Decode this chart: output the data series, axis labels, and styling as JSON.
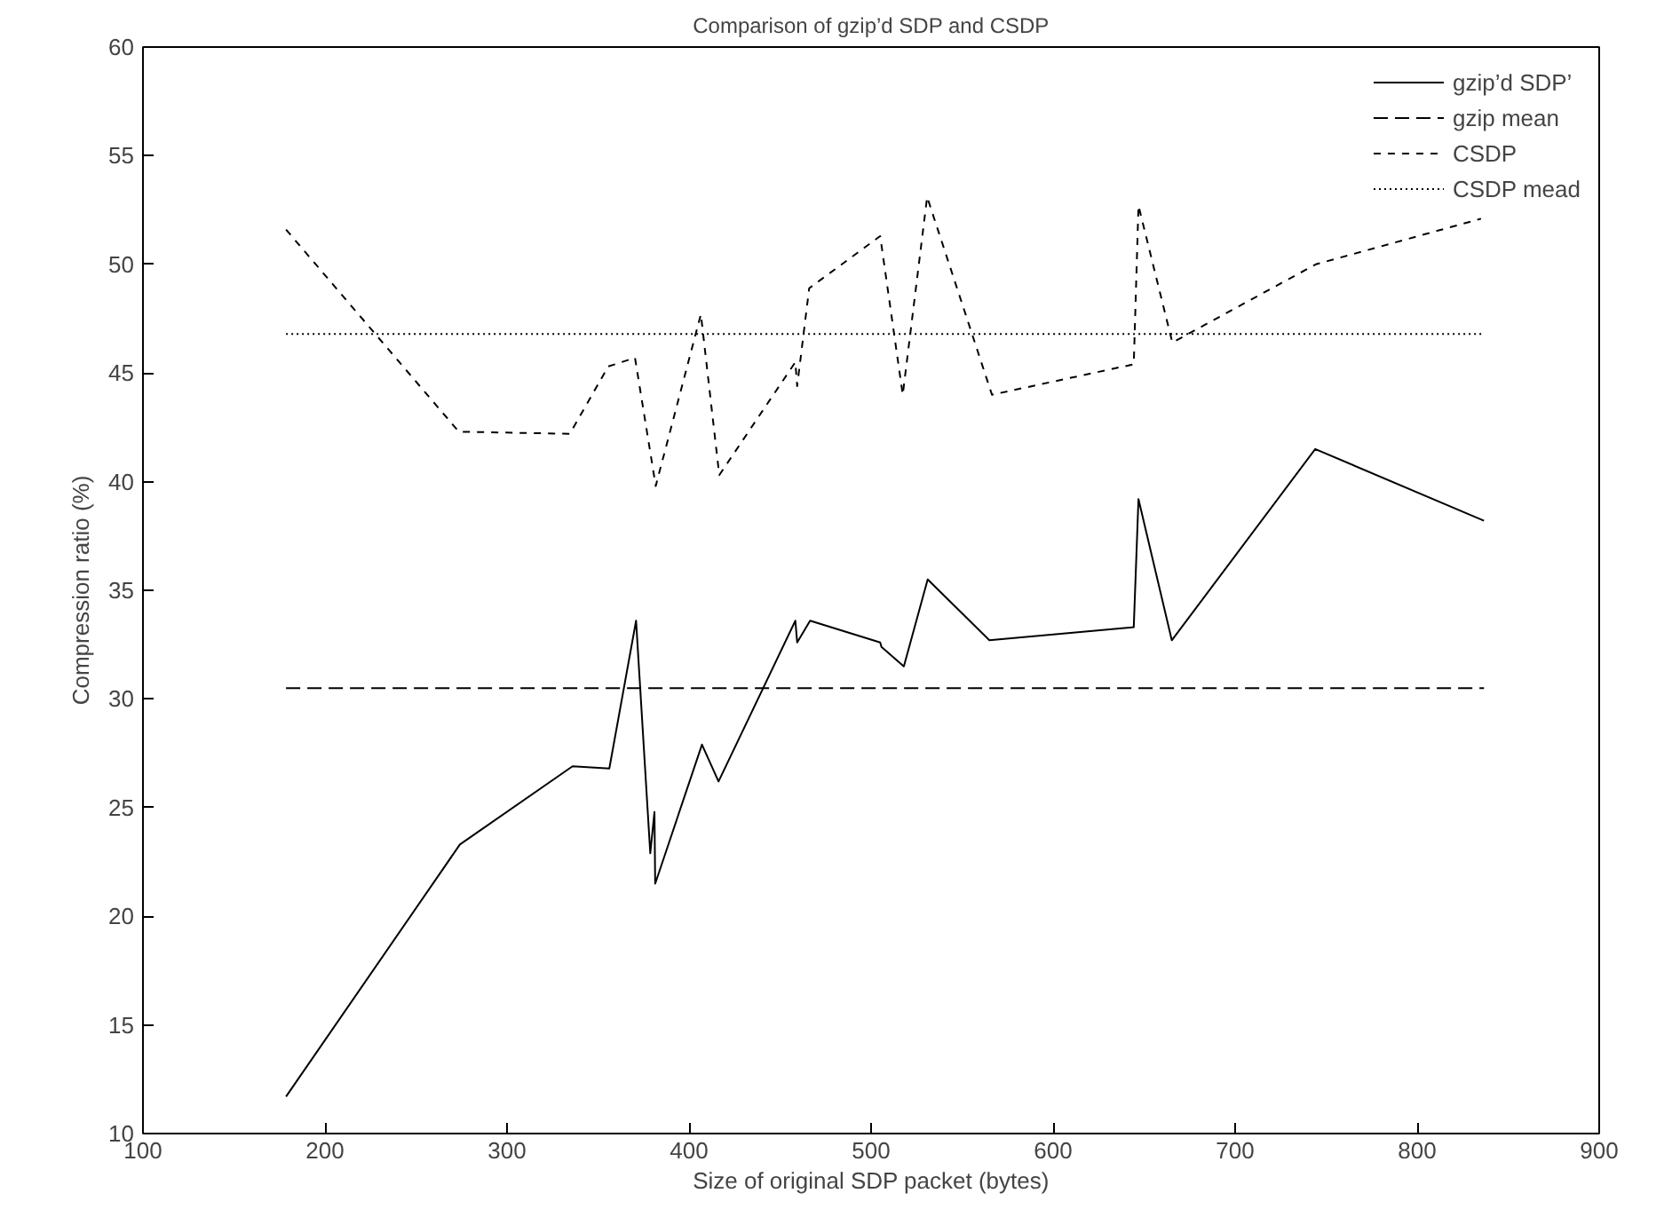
{
  "chart_data": {
    "type": "line",
    "title": "Comparison of gzip’d SDP and CSDP",
    "xlabel": "Size of original SDP packet (bytes)",
    "ylabel": "Compression ratio (%)",
    "xlim": [
      100,
      900
    ],
    "ylim": [
      10,
      60
    ],
    "xticks": [
      100,
      200,
      300,
      400,
      500,
      600,
      700,
      800,
      900
    ],
    "yticks": [
      10,
      15,
      20,
      25,
      30,
      35,
      40,
      45,
      50,
      55,
      60
    ],
    "grid": false,
    "legend": "top right",
    "marker": "none",
    "series": [
      {
        "name": "gzip’d SDP’",
        "color": "#000000",
        "line_style": "solid",
        "x": [
          178.6,
          274.1,
          336,
          356.2,
          370.9,
          378.7,
          381,
          381.4,
          407.1,
          416.2,
          458.4,
          459.4,
          466.5,
          505,
          505.7,
          518,
          531.1,
          565,
          644.3,
          646.9,
          665.2,
          744,
          836.7
        ],
        "values": [
          11.7,
          23.3,
          26.9,
          26.8,
          33.6,
          22.9,
          24.8,
          21.5,
          27.9,
          26.2,
          33.6,
          32.6,
          33.6,
          32.6,
          32.4,
          31.5,
          35.5,
          32.7,
          33.3,
          39.2,
          32.7,
          41.5,
          38.2
        ]
      },
      {
        "name": "gzip mean",
        "color": "#000000",
        "line_style": "dashed",
        "x": [
          178.6,
          836.7
        ],
        "values": [
          30.5,
          30.5
        ]
      },
      {
        "name": "CSDP",
        "color": "#000000",
        "line_style": "dashed_short",
        "x": [
          178.6,
          273.5,
          334.5,
          355.6,
          370.3,
          381.7,
          406.5,
          416.6,
          458.4,
          459.4,
          466,
          505,
          517.4,
          530.8,
          566.4,
          644.3,
          646.9,
          665.5,
          744.3,
          835.1
        ],
        "values": [
          51.6,
          42.3,
          42.2,
          45.3,
          45.7,
          39.8,
          47.7,
          40.3,
          45.5,
          44.4,
          48.9,
          51.3,
          44.0,
          53.1,
          44.0,
          45.4,
          52.7,
          46.4,
          50.0,
          52.1
        ]
      },
      {
        "name": "CSDP mead",
        "color": "#000000",
        "line_style": "dotted",
        "x": [
          178.6,
          836.7
        ],
        "values": [
          46.8,
          46.8
        ]
      }
    ]
  }
}
